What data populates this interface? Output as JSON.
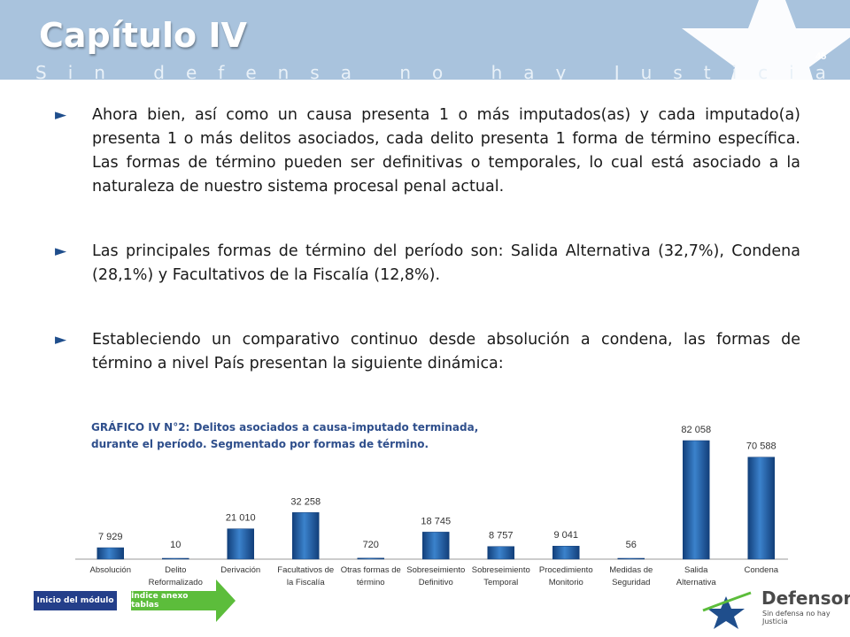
{
  "header": {
    "title": "Capítulo IV",
    "subtitle": "Sin defensa no hay Justicia",
    "page_number": "45"
  },
  "bullets": [
    "Ahora bien, así como un causa presenta 1 o más imputados(as) y cada imputado(a) presenta 1 o más delitos asociados, cada delito presenta 1 forma de término específica. Las formas de término pueden ser definitivas o temporales, lo cual está asociado a la naturaleza de nuestro sistema procesal penal actual.",
    "Las principales formas de término del período son: Salida Alternativa (32,7%), Condena (28,1%) y Facultativos de la Fiscalía (12,8%).",
    "Estableciendo un comparativo continuo desde absolución a condena, las formas de término a nivel País presentan la siguiente dinámica:"
  ],
  "chart_caption": {
    "line1": "GRÁFICO IV N°2: Delitos asociados a causa-imputado terminada,",
    "line2": "durante el período. Segmentado por formas de término."
  },
  "chart_data": {
    "type": "bar",
    "categories": [
      "Absolución",
      "Delito Reformalizado",
      "Derivación",
      "Facultativos de la Fiscalía",
      "Otras formas de término",
      "Sobreseimiento Definitivo",
      "Sobreseimiento Temporal",
      "Procedimiento Monitorio",
      "Medidas de Seguridad",
      "Salida Alternativa",
      "Condena"
    ],
    "category_lines": [
      [
        "Absolución"
      ],
      [
        "Delito",
        "Reformalizado"
      ],
      [
        "Derivación"
      ],
      [
        "Facultativos de",
        "la Fiscalía"
      ],
      [
        "Otras formas de",
        "término"
      ],
      [
        "Sobreseimiento",
        "Definitivo"
      ],
      [
        "Sobreseimiento",
        "Temporal"
      ],
      [
        "Procedimiento",
        "Monitorio"
      ],
      [
        "Medidas de",
        "Seguridad"
      ],
      [
        "Salida",
        "Alternativa"
      ],
      [
        "Condena"
      ]
    ],
    "values": [
      7929,
      10,
      21010,
      32258,
      720,
      18745,
      8757,
      9041,
      56,
      82058,
      70588
    ],
    "data_labels": [
      "7 929",
      "10",
      "21 010",
      "32 258",
      "720",
      "18 745",
      "8 757",
      "9 041",
      "56",
      "82 058",
      "70 588"
    ],
    "ylim": [
      0,
      82058
    ],
    "colors": {
      "bar": "#1f5fa8",
      "bar_light": "#3b82cc",
      "bar_dark": "#123f7a",
      "label": "#333333"
    }
  },
  "nav": {
    "home_label": "Inicio del módulo",
    "index_label": "Índice anexo tablas"
  },
  "logo": {
    "name": "Defensoría",
    "tagline": "Sin defensa no hay Justicia"
  },
  "colors": {
    "header_bg": "#a9c3dd",
    "accent": "#1f4e8c",
    "home_button": "#243f8a",
    "index_button": "#5cbd3b"
  }
}
